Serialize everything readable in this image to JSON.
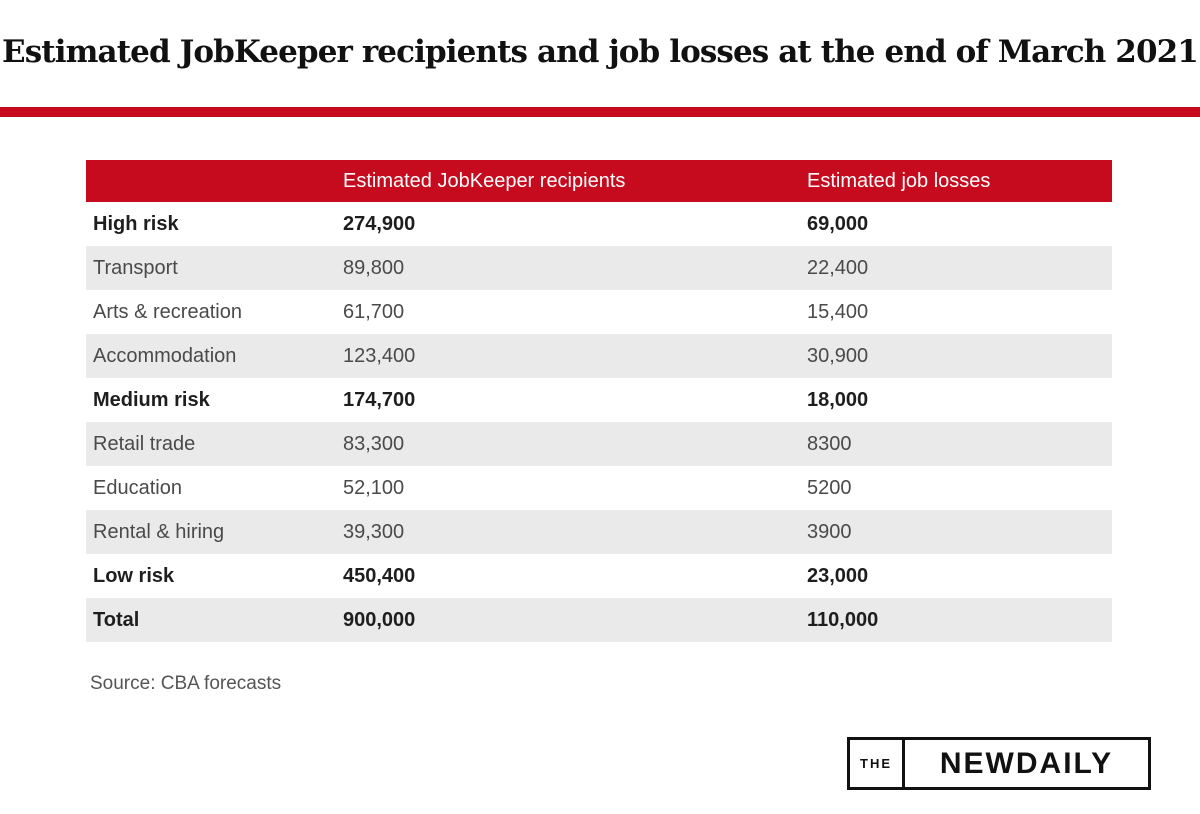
{
  "title": "Estimated JobKeeper recipients and job losses at the end of March 2021",
  "colors": {
    "accent_red": "#c60b1e",
    "row_shade": "#eaeaea",
    "text": "#2b2b2b"
  },
  "chart_data": {
    "type": "table",
    "title": "Estimated JobKeeper recipients and job losses at the end of March 2021",
    "columns": [
      "",
      "Estimated JobKeeper recipients",
      "Estimated job losses"
    ],
    "rows": [
      {
        "label": "High risk",
        "recipients": "274,900",
        "job_losses": "69,000",
        "bold": true,
        "shaded": false
      },
      {
        "label": "Transport",
        "recipients": "89,800",
        "job_losses": "22,400",
        "bold": false,
        "shaded": true
      },
      {
        "label": "Arts & recreation",
        "recipients": "61,700",
        "job_losses": "15,400",
        "bold": false,
        "shaded": false
      },
      {
        "label": "Accommodation",
        "recipients": "123,400",
        "job_losses": "30,900",
        "bold": false,
        "shaded": true
      },
      {
        "label": "Medium risk",
        "recipients": "174,700",
        "job_losses": "18,000",
        "bold": true,
        "shaded": false
      },
      {
        "label": "Retail trade",
        "recipients": "83,300",
        "job_losses": "8300",
        "bold": false,
        "shaded": true
      },
      {
        "label": "Education",
        "recipients": "52,100",
        "job_losses": "5200",
        "bold": false,
        "shaded": false
      },
      {
        "label": "Rental & hiring",
        "recipients": "39,300",
        "job_losses": "3900",
        "bold": false,
        "shaded": true
      },
      {
        "label": "Low risk",
        "recipients": "450,400",
        "job_losses": "23,000",
        "bold": true,
        "shaded": false
      },
      {
        "label": "Total",
        "recipients": "900,000",
        "job_losses": "110,000",
        "bold": true,
        "shaded": true
      }
    ]
  },
  "source": "Source: CBA forecasts",
  "logo": {
    "prefix": "THE",
    "name": "NEWDAILY"
  }
}
